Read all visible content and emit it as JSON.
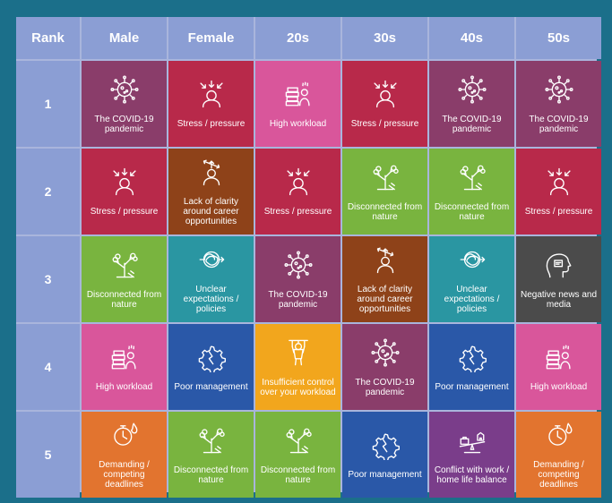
{
  "headers": [
    "Rank",
    "Male",
    "Female",
    "20s",
    "30s",
    "40s",
    "50s"
  ],
  "ranks": [
    "1",
    "2",
    "3",
    "4",
    "5"
  ],
  "colors": {
    "covid": "#8a3d6a",
    "stress": "#b8294a",
    "workload": "#d9569b",
    "nature": "#79b43f",
    "career": "#8e4219",
    "expectations": "#2a96a2",
    "management": "#2a58a8",
    "control": "#f2a61d",
    "deadlines": "#e2742f",
    "news": "#4b4b4b",
    "conflict": "#7a3d8a"
  },
  "rows": [
    [
      {
        "label": "The COVID-19 pandemic",
        "icon": "virus-icon",
        "cat": "covid"
      },
      {
        "label": "Stress / pressure",
        "icon": "stressed-person-icon",
        "cat": "stress"
      },
      {
        "label": "High workload",
        "icon": "workload-icon",
        "cat": "workload"
      },
      {
        "label": "Stress / pressure",
        "icon": "stressed-person-icon",
        "cat": "stress"
      },
      {
        "label": "The COVID-19 pandemic",
        "icon": "virus-icon",
        "cat": "covid"
      },
      {
        "label": "The COVID-19 pandemic",
        "icon": "virus-icon",
        "cat": "covid"
      }
    ],
    [
      {
        "label": "Stress / pressure",
        "icon": "stressed-person-icon",
        "cat": "stress"
      },
      {
        "label": "Lack of clarity around career opportunities",
        "icon": "career-arrows-icon",
        "cat": "career"
      },
      {
        "label": "Stress / pressure",
        "icon": "stressed-person-icon",
        "cat": "stress"
      },
      {
        "label": "Disconnected from nature",
        "icon": "tree-icon",
        "cat": "nature"
      },
      {
        "label": "Disconnected from nature",
        "icon": "tree-icon",
        "cat": "nature"
      },
      {
        "label": "Stress / pressure",
        "icon": "stressed-person-icon",
        "cat": "stress"
      }
    ],
    [
      {
        "label": "Disconnected from nature",
        "icon": "tree-icon",
        "cat": "nature"
      },
      {
        "label": "Unclear expectations / policies",
        "icon": "tangle-icon",
        "cat": "expectations"
      },
      {
        "label": "The COVID-19 pandemic",
        "icon": "virus-icon",
        "cat": "covid"
      },
      {
        "label": "Lack of clarity around career opportunities",
        "icon": "career-arrows-icon",
        "cat": "career"
      },
      {
        "label": "Unclear expectations / policies",
        "icon": "tangle-icon",
        "cat": "expectations"
      },
      {
        "label": "Negative news and media",
        "icon": "head-news-icon",
        "cat": "news"
      }
    ],
    [
      {
        "label": "High workload",
        "icon": "workload-icon",
        "cat": "workload"
      },
      {
        "label": "Poor management",
        "icon": "broken-gear-icon",
        "cat": "management"
      },
      {
        "label": "Insufficient control over your workload",
        "icon": "puppet-icon",
        "cat": "control"
      },
      {
        "label": "The COVID-19 pandemic",
        "icon": "virus-icon",
        "cat": "covid"
      },
      {
        "label": "Poor management",
        "icon": "broken-gear-icon",
        "cat": "management"
      },
      {
        "label": "High workload",
        "icon": "workload-icon",
        "cat": "workload"
      }
    ],
    [
      {
        "label": "Demanding / competing deadlines",
        "icon": "stopwatch-fire-icon",
        "cat": "deadlines"
      },
      {
        "label": "Disconnected from nature",
        "icon": "tree-icon",
        "cat": "nature"
      },
      {
        "label": "Disconnected from nature",
        "icon": "tree-icon",
        "cat": "nature"
      },
      {
        "label": "Poor management",
        "icon": "broken-gear-icon",
        "cat": "management"
      },
      {
        "label": "Conflict with work / home life balance",
        "icon": "seesaw-icon",
        "cat": "conflict"
      },
      {
        "label": "Demanding / competing deadlines",
        "icon": "stopwatch-fire-icon",
        "cat": "deadlines"
      }
    ]
  ]
}
